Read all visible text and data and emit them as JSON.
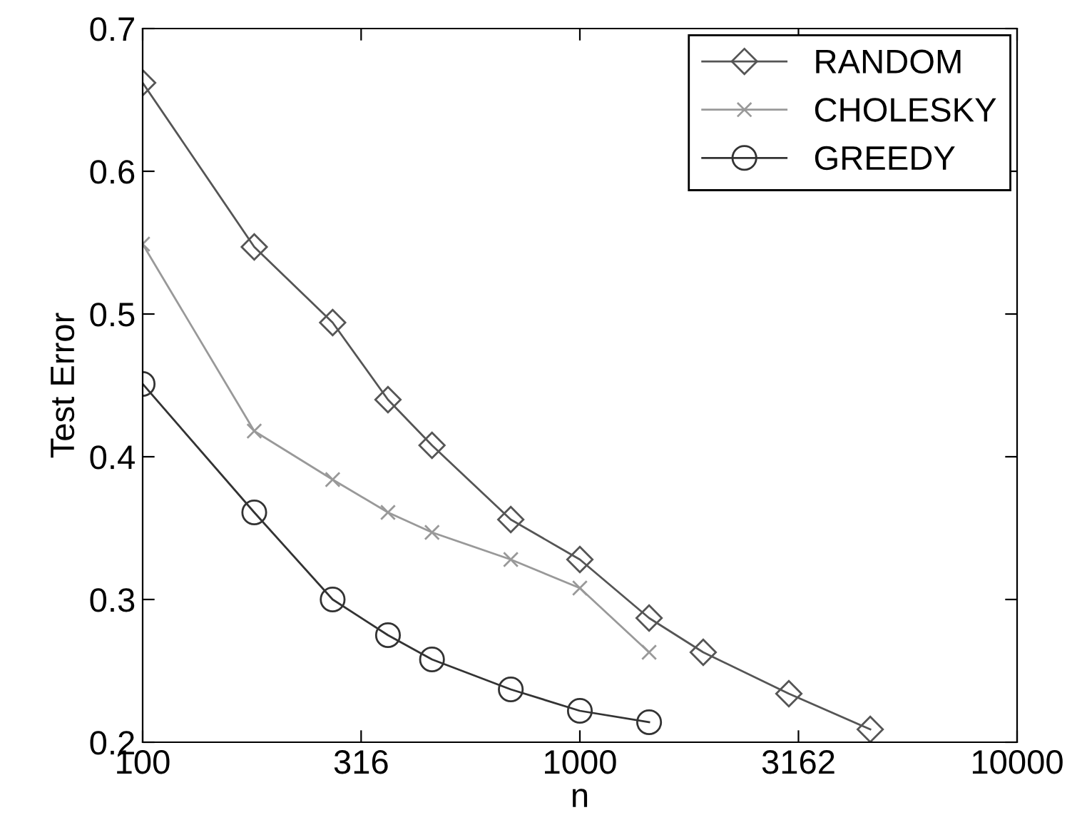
{
  "chart_data": {
    "type": "line",
    "xlabel": "n",
    "ylabel": "Test Error",
    "log": "x",
    "xlim": [
      100,
      10000
    ],
    "xticks": [
      100,
      316,
      1000,
      3162,
      10000
    ],
    "ylim": [
      0.2,
      0.7
    ],
    "yticks": [
      0.2,
      0.3,
      0.4,
      0.5,
      0.6,
      0.7
    ],
    "grid": false,
    "legend": "top right",
    "line_style": "solid",
    "series": [
      {
        "name": "RANDOM",
        "color": "#555555",
        "marker": "diamond",
        "x": [
          100,
          180,
          272,
          364,
          459,
          695,
          1000,
          1440,
          1915,
          3006,
          4615
        ],
        "values": [
          0.662,
          0.547,
          0.494,
          0.44,
          0.408,
          0.356,
          0.328,
          0.287,
          0.263,
          0.234,
          0.209
        ]
      },
      {
        "name": "CHOLESKY",
        "color": "#999999",
        "marker": "cross",
        "x": [
          100,
          180,
          272,
          364,
          459,
          695,
          1000,
          1440
        ],
        "values": [
          0.549,
          0.418,
          0.384,
          0.361,
          0.347,
          0.328,
          0.308,
          0.263
        ]
      },
      {
        "name": "GREEDY",
        "color": "#333333",
        "marker": "circle",
        "x": [
          100,
          180,
          272,
          364,
          459,
          695,
          1000,
          1440
        ],
        "values": [
          0.451,
          0.361,
          0.3,
          0.275,
          0.258,
          0.237,
          0.222,
          0.214
        ]
      }
    ]
  }
}
